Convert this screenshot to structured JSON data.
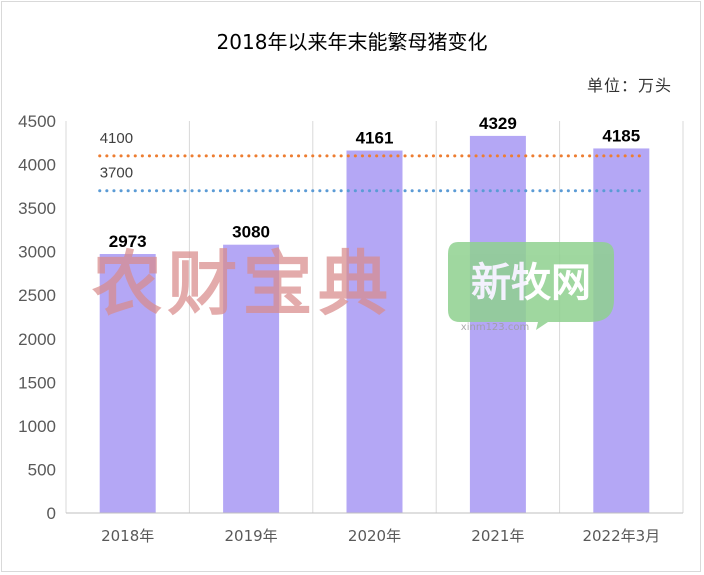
{
  "chart_data": {
    "type": "bar",
    "title": "2018年以来年末能繁母猪变化",
    "unit_label": "单位：万头",
    "categories": [
      "2018年",
      "2019年",
      "2020年",
      "2021年",
      "2022年3月"
    ],
    "values": [
      2973,
      3080,
      4161,
      4329,
      4185
    ],
    "ylim": [
      0,
      4500
    ],
    "yticks": [
      0,
      500,
      1000,
      1500,
      2000,
      2500,
      3000,
      3500,
      4000,
      4500
    ],
    "grid": "vertical",
    "bar_color": "#b4a7f5",
    "reference_lines": [
      {
        "label": "4100",
        "value": 4100,
        "color": "#ed7d31"
      },
      {
        "label": "3700",
        "value": 3700,
        "color": "#5b9bd5"
      }
    ]
  },
  "watermarks": [
    {
      "text": "农财宝典",
      "color": "#d98c8c"
    },
    {
      "text": "新牧网",
      "sub": "xinm123.com",
      "color": "#8fd18f"
    }
  ]
}
